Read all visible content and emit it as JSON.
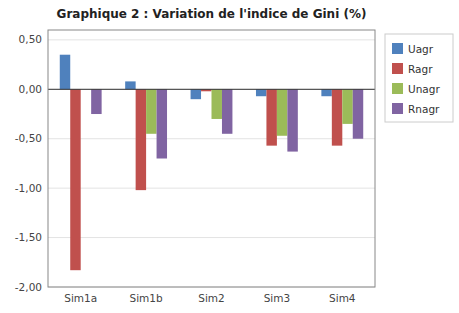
{
  "chart_data": {
    "type": "bar",
    "title": "Graphique 2 : Variation de l'indice de Gini (%)",
    "categories": [
      "Sim1a",
      "Sim1b",
      "Sim2",
      "Sim3",
      "Sim4"
    ],
    "series": [
      {
        "name": "Uagr",
        "color": "#4F81BD",
        "values": [
          0.35,
          0.08,
          -0.1,
          -0.07,
          -0.07
        ]
      },
      {
        "name": "Ragr",
        "color": "#C0504D",
        "values": [
          -1.83,
          -1.02,
          -0.02,
          -0.57,
          -0.57
        ]
      },
      {
        "name": "Unagr",
        "color": "#9BBB59",
        "values": [
          0.0,
          -0.45,
          -0.3,
          -0.47,
          -0.35
        ]
      },
      {
        "name": "Rnagr",
        "color": "#8064A2",
        "values": [
          -0.25,
          -0.7,
          -0.45,
          -0.63,
          -0.5
        ]
      }
    ],
    "ylim": [
      -2.0,
      0.6
    ],
    "yticks": [
      {
        "value": -2.0,
        "label": "-2,00"
      },
      {
        "value": -1.5,
        "label": "-1,50"
      },
      {
        "value": -1.0,
        "label": "-1,00"
      },
      {
        "value": -0.5,
        "label": "-0,50"
      },
      {
        "value": 0.0,
        "label": "0,00"
      },
      {
        "value": 0.5,
        "label": "0,50"
      }
    ],
    "grid": true,
    "legend": "right"
  }
}
